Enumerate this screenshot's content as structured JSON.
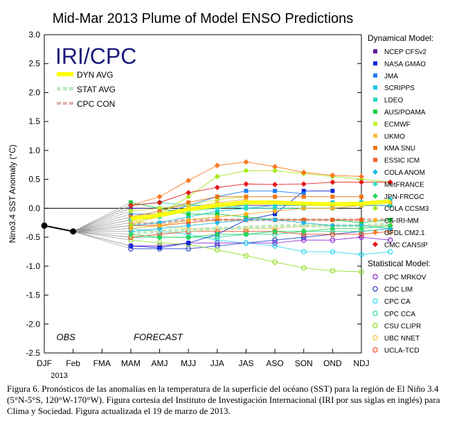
{
  "chart_data": {
    "type": "line",
    "title": "Mid-Mar 2013 Plume of Model ENSO Predictions",
    "ylabel": "Nino3.4 SST Anomaly (°C)",
    "xlabel": "",
    "ylim": [
      -2.5,
      3.0
    ],
    "yticks": [
      "-2.5",
      "-2.0",
      "-1.5",
      "-1.0",
      "-0.5",
      "0.0",
      "0.5",
      "1.0",
      "1.5",
      "2.0",
      "2.5",
      "3.0"
    ],
    "categories": [
      "DJF",
      "Feb",
      "FMA",
      "MAM",
      "AMJ",
      "MJJ",
      "JJA",
      "JAS",
      "ASO",
      "SON",
      "OND",
      "NDJ"
    ],
    "x_year_label": "2013",
    "grid": false,
    "logo": "IRI/CPC",
    "obs_label": "OBS",
    "forecast_label": "FORECAST",
    "avg_legend": [
      {
        "label": "DYN AVG",
        "color": "#ffff00"
      },
      {
        "label": "STAT AVG",
        "color": "#b8e6b8"
      },
      {
        "label": "CPC CON",
        "color": "#d9a8a8"
      }
    ],
    "observed": [
      -0.3,
      -0.4
    ],
    "dyn_avg": [
      -0.18,
      -0.12,
      -0.02,
      0.05,
      0.1,
      0.1,
      0.08,
      0.07,
      0.08,
      0.12
    ],
    "stat_avg": [
      -0.42,
      -0.4,
      -0.38,
      -0.35,
      -0.33,
      -0.31,
      -0.3,
      -0.3,
      -0.3,
      -0.28
    ],
    "cpc_con": [
      -0.28,
      -0.25,
      -0.2,
      -0.2,
      -0.2,
      -0.2,
      -0.2,
      -0.2,
      -0.2,
      -0.2
    ],
    "dynamical_header": "Dynamical Model:",
    "statistical_header": "Statistical Model:",
    "dynamical_models": [
      {
        "name": "NCEP CFSv2",
        "color": "#5a1a9a",
        "marker": "square",
        "values": [
          0.0,
          0.0,
          0.05,
          0.05,
          0.05,
          0.05,
          0.05,
          0.05,
          0.05,
          0.05
        ]
      },
      {
        "name": "NASA GMAO",
        "color": "#0a28d8",
        "marker": "square",
        "values": [
          -0.65,
          -0.68,
          -0.6,
          -0.45,
          -0.2,
          -0.1,
          0.3,
          0.3,
          null,
          null
        ]
      },
      {
        "name": "JMA",
        "color": "#1f7cf0",
        "marker": "square",
        "values": [
          -0.1,
          -0.1,
          0.05,
          0.2,
          0.3,
          0.3,
          0.25,
          null,
          null,
          null
        ]
      },
      {
        "name": "SCRIPPS",
        "color": "#10c8e8",
        "marker": "square",
        "values": [
          -0.3,
          -0.25,
          -0.15,
          -0.05,
          0.0,
          0.05,
          0.05,
          0.1,
          0.1,
          0.15
        ]
      },
      {
        "name": "LDEO",
        "color": "#24d8c0",
        "marker": "square",
        "values": [
          0.05,
          0.1,
          0.05,
          0.05,
          0.0,
          0.0,
          0.0,
          0.0,
          0.05,
          0.05
        ]
      },
      {
        "name": "AUS/POAMA",
        "color": "#10d040",
        "marker": "square",
        "values": [
          0.1,
          0.0,
          -0.1,
          -0.1,
          -0.15,
          -0.2,
          -0.2,
          -0.2,
          -0.25,
          -0.2
        ]
      },
      {
        "name": "ECMWF",
        "color": "#c0f030",
        "marker": "square",
        "values": [
          -0.05,
          0.0,
          0.05,
          0.15,
          0.2,
          null,
          null,
          null,
          null,
          null
        ]
      },
      {
        "name": "UKMO",
        "color": "#f8c040",
        "marker": "square",
        "values": [
          -0.25,
          -0.15,
          0.0,
          0.1,
          0.15,
          null,
          null,
          null,
          null,
          null
        ]
      },
      {
        "name": "KMA SNU",
        "color": "#f07818",
        "marker": "square",
        "values": [
          -0.15,
          -0.05,
          0.1,
          0.2,
          0.2,
          0.2,
          0.2,
          0.2,
          0.2,
          null
        ]
      },
      {
        "name": "ESSIC ICM",
        "color": "#f06020",
        "marker": "square",
        "values": [
          -0.3,
          -0.3,
          -0.25,
          -0.2,
          -0.2,
          -0.2,
          -0.2,
          -0.2,
          -0.2,
          null
        ]
      },
      {
        "name": "COLA ANOM",
        "color": "#20b8e8",
        "marker": "diamond",
        "values": [
          -0.4,
          -0.35,
          -0.3,
          -0.25,
          -0.2,
          -0.2,
          -0.25,
          -0.3,
          -0.3,
          -0.35
        ]
      },
      {
        "name": "MetFRANCE",
        "color": "#30e0c0",
        "marker": "diamond",
        "values": [
          -0.2,
          -0.15,
          -0.05,
          0.0,
          0.05,
          null,
          null,
          null,
          null,
          null
        ]
      },
      {
        "name": "JPN-FRCGC",
        "color": "#28d858",
        "marker": "diamond",
        "values": [
          -0.45,
          -0.5,
          -0.5,
          -0.45,
          -0.45,
          -0.4,
          -0.4,
          -0.35,
          -0.35,
          -0.3
        ]
      },
      {
        "name": "COLA CCSM3",
        "color": "#a8e818",
        "marker": "diamond",
        "values": [
          -0.3,
          -0.1,
          0.2,
          0.55,
          0.65,
          0.65,
          0.6,
          0.55,
          0.5,
          0.45
        ]
      },
      {
        "name": "CS-IRI-MM",
        "color": "#f8b020",
        "marker": "diamond",
        "values": [
          -0.35,
          -0.3,
          -0.2,
          -0.15,
          -0.1,
          -0.05,
          0.0,
          0.0,
          0.05,
          0.1
        ]
      },
      {
        "name": "GFDL CM2.1",
        "color": "#f87820",
        "marker": "diamond",
        "values": [
          0.05,
          0.2,
          0.48,
          0.74,
          0.8,
          0.72,
          0.62,
          0.57,
          0.55,
          null
        ]
      },
      {
        "name": "CMC CANSIP",
        "color": "#e81818",
        "marker": "diamond",
        "values": [
          0.05,
          0.1,
          0.27,
          0.36,
          0.42,
          0.41,
          0.42,
          0.45,
          0.45,
          0.45
        ]
      }
    ],
    "statistical_models": [
      {
        "name": "CPC MRKOV",
        "color": "#9030d8",
        "marker": "circle",
        "values": [
          -0.65,
          -0.65,
          -0.6,
          -0.6,
          -0.6,
          -0.6,
          -0.55,
          -0.55,
          -0.5,
          -0.55
        ]
      },
      {
        "name": "CDC LIM",
        "color": "#3048c8",
        "marker": "circle",
        "values": [
          -0.7,
          -0.7,
          -0.7,
          -0.65,
          -0.6,
          -0.55,
          -0.5,
          -0.45,
          -0.4,
          -0.35
        ]
      },
      {
        "name": "CPC CA",
        "color": "#30d8f0",
        "marker": "circle",
        "values": [
          -0.35,
          -0.4,
          -0.45,
          -0.55,
          -0.6,
          -0.65,
          -0.75,
          -0.75,
          -0.8,
          -0.75
        ]
      },
      {
        "name": "CPC CCA",
        "color": "#30d898",
        "marker": "circle",
        "values": [
          -0.5,
          -0.5,
          -0.5,
          -0.5,
          -0.45,
          -0.45,
          -0.4,
          -0.4,
          -0.4,
          -0.35
        ]
      },
      {
        "name": "CSU CLIPR",
        "color": "#98e030",
        "marker": "circle",
        "values": [
          -0.55,
          -0.6,
          -0.62,
          -0.72,
          -0.82,
          -0.93,
          -1.03,
          -1.08,
          -1.1,
          null
        ]
      },
      {
        "name": "UBC NNET",
        "color": "#f8c048",
        "marker": "circle",
        "values": [
          -0.2,
          -0.3,
          -0.35,
          -0.35,
          -0.35,
          -0.35,
          -0.3,
          -0.3,
          -0.3,
          -0.3
        ]
      },
      {
        "name": "UCLA-TCD",
        "color": "#f05028",
        "marker": "circle",
        "values": [
          -0.5,
          -0.45,
          -0.4,
          -0.4,
          -0.4,
          -0.4,
          -0.45,
          -0.45,
          -0.45,
          -0.4
        ]
      }
    ]
  },
  "caption": "Figura 6. Pronósticos de las anomalías en la temperatura de la superficie del océano (SST) para la región de El Niño 3.4 (5°N-5°S, 120°W-170°W). Figura cortesía del Instituto de Investigación Internacional (IRI por sus siglas en inglés) para Clima y Sociedad. Figura actualizada el 19 de marzo de 2013."
}
